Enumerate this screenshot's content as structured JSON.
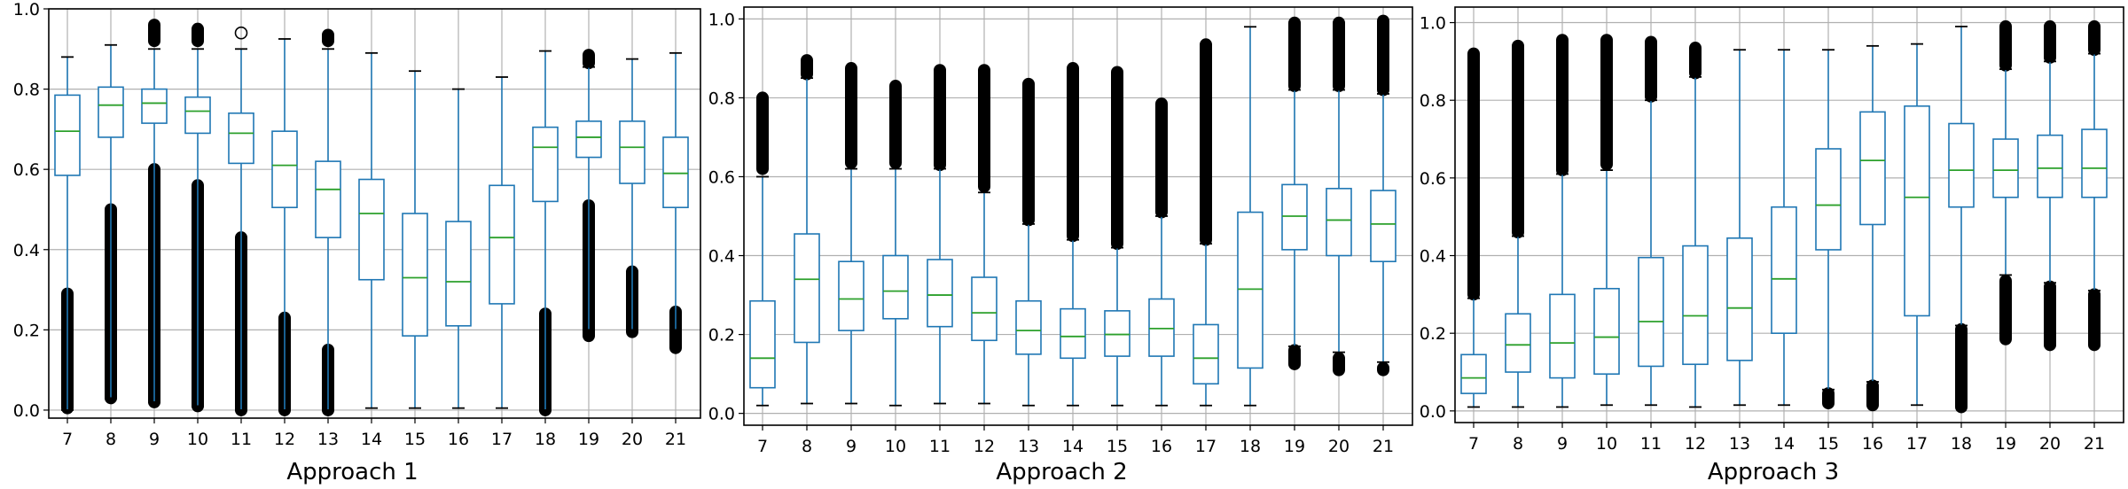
{
  "chart_data": [
    {
      "type": "box",
      "title": "",
      "xlabel": "Approach 1",
      "ylabel": "",
      "ylim": [
        -0.02,
        1.0
      ],
      "yticks": [
        0.0,
        0.2,
        0.4,
        0.6,
        0.8,
        1.0
      ],
      "ytick_labels": [
        "0.0",
        "0.2",
        "0.4",
        "0.6",
        "0.8",
        "1.0"
      ],
      "grid": true,
      "categories": [
        "7",
        "8",
        "9",
        "10",
        "11",
        "12",
        "13",
        "14",
        "15",
        "16",
        "17",
        "18",
        "19",
        "20",
        "21"
      ],
      "boxes": [
        {
          "whislo": 0.0,
          "q1": 0.585,
          "med": 0.695,
          "q3": 0.785,
          "whishi": 0.88,
          "fliers_low": [
            0.005,
            0.29
          ],
          "fliers_high": []
        },
        {
          "whislo": 0.03,
          "q1": 0.68,
          "med": 0.76,
          "q3": 0.805,
          "whishi": 0.91,
          "fliers_low": [
            0.03,
            0.5
          ],
          "fliers_high": []
        },
        {
          "whislo": 0.02,
          "q1": 0.715,
          "med": 0.765,
          "q3": 0.8,
          "whishi": 0.9,
          "fliers_low": [
            0.02,
            0.6
          ],
          "fliers_high": [
            0.92,
            0.96
          ]
        },
        {
          "whislo": 0.01,
          "q1": 0.69,
          "med": 0.745,
          "q3": 0.78,
          "whishi": 0.9,
          "fliers_low": [
            0.01,
            0.56
          ],
          "fliers_high": [
            0.92,
            0.95
          ]
        },
        {
          "whislo": 0.0,
          "q1": 0.615,
          "med": 0.69,
          "q3": 0.74,
          "whishi": 0.9,
          "fliers_low": [
            0.0,
            0.43
          ],
          "fliers_high": [
            0.94,
            0.94
          ]
        },
        {
          "whislo": 0.0,
          "q1": 0.505,
          "med": 0.61,
          "q3": 0.695,
          "whishi": 0.925,
          "fliers_low": [
            0.0,
            0.23
          ],
          "fliers_high": []
        },
        {
          "whislo": 0.0,
          "q1": 0.43,
          "med": 0.55,
          "q3": 0.62,
          "whishi": 0.9,
          "fliers_low": [
            0.0,
            0.15
          ],
          "fliers_high": [
            0.92,
            0.935
          ]
        },
        {
          "whislo": 0.005,
          "q1": 0.325,
          "med": 0.49,
          "q3": 0.575,
          "whishi": 0.89,
          "fliers_low": [],
          "fliers_high": []
        },
        {
          "whislo": 0.005,
          "q1": 0.185,
          "med": 0.33,
          "q3": 0.49,
          "whishi": 0.845,
          "fliers_low": [],
          "fliers_high": []
        },
        {
          "whislo": 0.005,
          "q1": 0.21,
          "med": 0.32,
          "q3": 0.47,
          "whishi": 0.8,
          "fliers_low": [],
          "fliers_high": []
        },
        {
          "whislo": 0.005,
          "q1": 0.265,
          "med": 0.43,
          "q3": 0.56,
          "whishi": 0.83,
          "fliers_low": [],
          "fliers_high": []
        },
        {
          "whislo": 0.0,
          "q1": 0.52,
          "med": 0.655,
          "q3": 0.705,
          "whishi": 0.895,
          "fliers_low": [
            0.0,
            0.24
          ],
          "fliers_high": []
        },
        {
          "whislo": 0.2,
          "q1": 0.63,
          "med": 0.68,
          "q3": 0.72,
          "whishi": 0.855,
          "fliers_low": [
            0.185,
            0.51
          ],
          "fliers_high": [
            0.865,
            0.885
          ]
        },
        {
          "whislo": 0.2,
          "q1": 0.565,
          "med": 0.655,
          "q3": 0.72,
          "whishi": 0.875,
          "fliers_low": [
            0.195,
            0.345
          ],
          "fliers_high": []
        },
        {
          "whislo": 0.2,
          "q1": 0.505,
          "med": 0.59,
          "q3": 0.68,
          "whishi": 0.89,
          "fliers_low": [
            0.155,
            0.245
          ],
          "fliers_high": []
        }
      ]
    },
    {
      "type": "box",
      "title": "",
      "xlabel": "Approach 2",
      "ylabel": "",
      "ylim": [
        -0.03,
        1.03
      ],
      "yticks": [
        0.0,
        0.2,
        0.4,
        0.6,
        0.8,
        1.0
      ],
      "ytick_labels": [
        "0.0",
        "0.2",
        "0.4",
        "0.6",
        "0.8",
        "1.0"
      ],
      "grid": true,
      "categories": [
        "7",
        "8",
        "9",
        "10",
        "11",
        "12",
        "13",
        "14",
        "15",
        "16",
        "17",
        "18",
        "19",
        "20",
        "21"
      ],
      "boxes": [
        {
          "whislo": 0.02,
          "q1": 0.065,
          "med": 0.14,
          "q3": 0.285,
          "whishi": 0.6,
          "fliers_low": [],
          "fliers_high": [
            0.62,
            0.8
          ]
        },
        {
          "whislo": 0.025,
          "q1": 0.18,
          "med": 0.34,
          "q3": 0.455,
          "whishi": 0.85,
          "fliers_low": [],
          "fliers_high": [
            0.86,
            0.895
          ]
        },
        {
          "whislo": 0.025,
          "q1": 0.21,
          "med": 0.29,
          "q3": 0.385,
          "whishi": 0.62,
          "fliers_low": [],
          "fliers_high": [
            0.635,
            0.875
          ]
        },
        {
          "whislo": 0.02,
          "q1": 0.24,
          "med": 0.31,
          "q3": 0.4,
          "whishi": 0.62,
          "fliers_low": [],
          "fliers_high": [
            0.635,
            0.83
          ]
        },
        {
          "whislo": 0.025,
          "q1": 0.22,
          "med": 0.3,
          "q3": 0.39,
          "whishi": 0.62,
          "fliers_low": [],
          "fliers_high": [
            0.63,
            0.87
          ]
        },
        {
          "whislo": 0.025,
          "q1": 0.185,
          "med": 0.255,
          "q3": 0.345,
          "whishi": 0.56,
          "fliers_low": [],
          "fliers_high": [
            0.575,
            0.87
          ]
        },
        {
          "whislo": 0.02,
          "q1": 0.15,
          "med": 0.21,
          "q3": 0.285,
          "whishi": 0.48,
          "fliers_low": [],
          "fliers_high": [
            0.49,
            0.835
          ]
        },
        {
          "whislo": 0.02,
          "q1": 0.14,
          "med": 0.195,
          "q3": 0.265,
          "whishi": 0.44,
          "fliers_low": [],
          "fliers_high": [
            0.45,
            0.875
          ]
        },
        {
          "whislo": 0.02,
          "q1": 0.145,
          "med": 0.2,
          "q3": 0.26,
          "whishi": 0.42,
          "fliers_low": [],
          "fliers_high": [
            0.43,
            0.865
          ]
        },
        {
          "whislo": 0.02,
          "q1": 0.145,
          "med": 0.215,
          "q3": 0.29,
          "whishi": 0.5,
          "fliers_low": [],
          "fliers_high": [
            0.51,
            0.785
          ]
        },
        {
          "whislo": 0.02,
          "q1": 0.075,
          "med": 0.14,
          "q3": 0.225,
          "whishi": 0.43,
          "fliers_low": [],
          "fliers_high": [
            0.44,
            0.935
          ]
        },
        {
          "whislo": 0.02,
          "q1": 0.115,
          "med": 0.315,
          "q3": 0.51,
          "whishi": 0.98,
          "fliers_low": [],
          "fliers_high": []
        },
        {
          "whislo": 0.17,
          "q1": 0.415,
          "med": 0.5,
          "q3": 0.58,
          "whishi": 0.82,
          "fliers_low": [
            0.125,
            0.16
          ],
          "fliers_high": [
            0.83,
            0.99
          ]
        },
        {
          "whislo": 0.155,
          "q1": 0.4,
          "med": 0.49,
          "q3": 0.57,
          "whishi": 0.82,
          "fliers_low": [
            0.11,
            0.14
          ],
          "fliers_high": [
            0.83,
            0.99
          ]
        },
        {
          "whislo": 0.13,
          "q1": 0.385,
          "med": 0.48,
          "q3": 0.565,
          "whishi": 0.81,
          "fliers_low": [
            0.11,
            0.115
          ],
          "fliers_high": [
            0.82,
            0.995
          ]
        }
      ]
    },
    {
      "type": "box",
      "title": "",
      "xlabel": "Approach 3",
      "ylabel": "",
      "ylim": [
        -0.03,
        1.04
      ],
      "yticks": [
        0.0,
        0.2,
        0.4,
        0.6,
        0.8,
        1.0
      ],
      "ytick_labels": [
        "0.0",
        "0.2",
        "0.4",
        "0.6",
        "0.8",
        "1.0"
      ],
      "grid": true,
      "categories": [
        "7",
        "8",
        "9",
        "10",
        "11",
        "12",
        "13",
        "14",
        "15",
        "16",
        "17",
        "18",
        "19",
        "20",
        "21"
      ],
      "boxes": [
        {
          "whislo": 0.01,
          "q1": 0.045,
          "med": 0.085,
          "q3": 0.145,
          "whishi": 0.29,
          "fliers_low": [],
          "fliers_high": [
            0.3,
            0.92
          ]
        },
        {
          "whislo": 0.01,
          "q1": 0.1,
          "med": 0.17,
          "q3": 0.25,
          "whishi": 0.45,
          "fliers_low": [],
          "fliers_high": [
            0.46,
            0.94
          ]
        },
        {
          "whislo": 0.01,
          "q1": 0.085,
          "med": 0.175,
          "q3": 0.3,
          "whishi": 0.61,
          "fliers_low": [],
          "fliers_high": [
            0.62,
            0.955
          ]
        },
        {
          "whislo": 0.015,
          "q1": 0.095,
          "med": 0.19,
          "q3": 0.315,
          "whishi": 0.62,
          "fliers_low": [],
          "fliers_high": [
            0.635,
            0.955
          ]
        },
        {
          "whislo": 0.015,
          "q1": 0.115,
          "med": 0.23,
          "q3": 0.395,
          "whishi": 0.8,
          "fliers_low": [],
          "fliers_high": [
            0.81,
            0.95
          ]
        },
        {
          "whislo": 0.01,
          "q1": 0.12,
          "med": 0.245,
          "q3": 0.425,
          "whishi": 0.86,
          "fliers_low": [],
          "fliers_high": [
            0.87,
            0.935
          ]
        },
        {
          "whislo": 0.015,
          "q1": 0.13,
          "med": 0.265,
          "q3": 0.445,
          "whishi": 0.93,
          "fliers_low": [],
          "fliers_high": []
        },
        {
          "whislo": 0.015,
          "q1": 0.2,
          "med": 0.34,
          "q3": 0.525,
          "whishi": 0.93,
          "fliers_low": [],
          "fliers_high": []
        },
        {
          "whislo": 0.055,
          "q1": 0.415,
          "med": 0.53,
          "q3": 0.675,
          "whishi": 0.93,
          "fliers_low": [
            0.02,
            0.045
          ],
          "fliers_high": []
        },
        {
          "whislo": 0.075,
          "q1": 0.48,
          "med": 0.645,
          "q3": 0.77,
          "whishi": 0.94,
          "fliers_low": [
            0.015,
            0.065
          ],
          "fliers_high": []
        },
        {
          "whislo": 0.015,
          "q1": 0.245,
          "med": 0.55,
          "q3": 0.785,
          "whishi": 0.945,
          "fliers_low": [],
          "fliers_high": []
        },
        {
          "whislo": 0.22,
          "q1": 0.525,
          "med": 0.62,
          "q3": 0.74,
          "whishi": 0.99,
          "fliers_low": [
            0.01,
            0.21
          ],
          "fliers_high": []
        },
        {
          "whislo": 0.35,
          "q1": 0.55,
          "med": 0.62,
          "q3": 0.7,
          "whishi": 0.88,
          "fliers_low": [
            0.185,
            0.335
          ],
          "fliers_high": [
            0.89,
            0.99
          ]
        },
        {
          "whislo": 0.33,
          "q1": 0.55,
          "med": 0.625,
          "q3": 0.71,
          "whishi": 0.9,
          "fliers_low": [
            0.17,
            0.32
          ],
          "fliers_high": [
            0.91,
            0.99
          ]
        },
        {
          "whislo": 0.31,
          "q1": 0.55,
          "med": 0.625,
          "q3": 0.725,
          "whishi": 0.92,
          "fliers_low": [
            0.17,
            0.3
          ],
          "fliers_high": [
            0.93,
            0.99
          ]
        }
      ]
    }
  ],
  "colors": {
    "box": "#1f77b4",
    "median": "#2ca02c",
    "flier": "#000000",
    "grid": "#b0b0b0",
    "axes": "#000000"
  }
}
